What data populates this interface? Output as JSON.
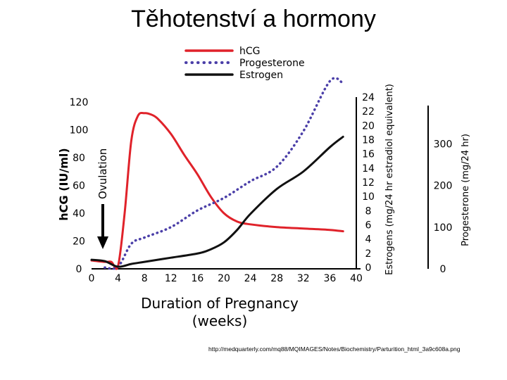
{
  "slide": {
    "title": "Těhotenství a hormony",
    "source_url": "http://medquarterly.com/mq88/MQIMAGES/Notes/Biochemistry/Parturition_html_3a9c608a.png"
  },
  "chart_data": {
    "type": "line",
    "title": "",
    "xlabel_lines": [
      "Duration of Pregnancy",
      "(weeks)"
    ],
    "x_ticks": [
      0,
      4,
      8,
      12,
      16,
      20,
      24,
      28,
      32,
      36,
      40
    ],
    "xlim": [
      0,
      40
    ],
    "grid": false,
    "legend_position": "top-center",
    "annotation": "Ovulation",
    "axes": {
      "hcg": {
        "label": "hCG (IU/ml)",
        "ticks": [
          0,
          20,
          40,
          60,
          80,
          100,
          120
        ],
        "range": [
          0,
          120
        ]
      },
      "estrogen": {
        "label": "Estrogens (mg/24 hr estradiol equivalent)",
        "ticks": [
          0,
          2,
          4,
          6,
          8,
          10,
          12,
          14,
          16,
          18,
          20,
          22,
          24
        ],
        "range": [
          0,
          24
        ]
      },
      "progesterone": {
        "label": "Progesterone (mg/24 hr)",
        "ticks": [
          0,
          100,
          200,
          300
        ],
        "range": [
          0,
          400
        ]
      }
    },
    "series": [
      {
        "name": "hCG",
        "axis": "hcg",
        "color": "#e0222a",
        "style": "solid",
        "points": [
          [
            0,
            6
          ],
          [
            2,
            5
          ],
          [
            3,
            5
          ],
          [
            4,
            2
          ],
          [
            5,
            40
          ],
          [
            6,
            92
          ],
          [
            7,
            110
          ],
          [
            8,
            112
          ],
          [
            9,
            111
          ],
          [
            10,
            108
          ],
          [
            12,
            97
          ],
          [
            14,
            82
          ],
          [
            16,
            68
          ],
          [
            18,
            52
          ],
          [
            20,
            40
          ],
          [
            22,
            34
          ],
          [
            24,
            32
          ],
          [
            28,
            30
          ],
          [
            32,
            29
          ],
          [
            36,
            28
          ],
          [
            38,
            27
          ]
        ]
      },
      {
        "name": "Progesterone",
        "axis": "progesterone",
        "color": "#4b3fa8",
        "style": "dotted",
        "points": [
          [
            2,
            3
          ],
          [
            4,
            5
          ],
          [
            6,
            60
          ],
          [
            8,
            75
          ],
          [
            12,
            100
          ],
          [
            16,
            140
          ],
          [
            20,
            170
          ],
          [
            24,
            210
          ],
          [
            28,
            245
          ],
          [
            32,
            330
          ],
          [
            36,
            450
          ],
          [
            38,
            445
          ]
        ]
      },
      {
        "name": "Estrogen",
        "axis": "estrogen",
        "color": "#111111",
        "style": "solid",
        "points": [
          [
            0,
            1.3
          ],
          [
            2,
            1.1
          ],
          [
            4,
            0.3
          ],
          [
            6,
            0.7
          ],
          [
            8,
            1.0
          ],
          [
            12,
            1.6
          ],
          [
            16,
            2.2
          ],
          [
            18,
            2.8
          ],
          [
            20,
            3.8
          ],
          [
            22,
            5.6
          ],
          [
            24,
            7.9
          ],
          [
            28,
            11.5
          ],
          [
            32,
            14.0
          ],
          [
            36,
            17.5
          ],
          [
            38,
            19.0
          ]
        ]
      }
    ]
  }
}
